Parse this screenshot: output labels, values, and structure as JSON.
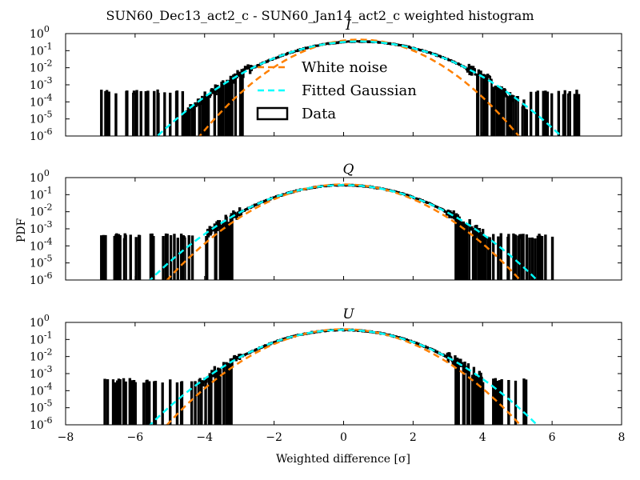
{
  "chart_data": {
    "title": "SUN60_Dec13_act2_c - SUN60_Jan14_act2_c weighted histogram",
    "xlabel": "Weighted difference [σ]",
    "ylabel": "PDF",
    "xlim": [
      -8,
      8
    ],
    "x_ticks": [
      "−8",
      "−6",
      "−4",
      "−2",
      "0",
      "2",
      "4",
      "6",
      "8"
    ],
    "y_ticks": [
      {
        "base": "10",
        "exp": "0"
      },
      {
        "base": "10",
        "exp": "-1"
      },
      {
        "base": "10",
        "exp": "-2"
      },
      {
        "base": "10",
        "exp": "-3"
      },
      {
        "base": "10",
        "exp": "-4"
      },
      {
        "base": "10",
        "exp": "-5"
      },
      {
        "base": "10",
        "exp": "-6"
      }
    ],
    "y_scale": "log",
    "grid": false,
    "legend": {
      "placement": "upper-center (top panel)",
      "entries": [
        {
          "label": "White noise",
          "style": "dashed",
          "color": "#ff8000"
        },
        {
          "label": "Fitted Gaussian",
          "style": "dashed",
          "color": "#00ffff"
        },
        {
          "label": "Data",
          "style": "step",
          "color": "#000000"
        }
      ]
    },
    "panels": [
      {
        "title": "I",
        "type": "line",
        "ylim": [
          1e-06,
          1
        ],
        "white_noise": {
          "mean": 0.45,
          "sigma": 0.9
        },
        "fitted_gaussian": {
          "mean": 0.45,
          "sigma": 1.15
        },
        "data_range": [
          -7.1,
          7.0
        ],
        "data_dense_range": [
          -4.6,
          5.3
        ]
      },
      {
        "title": "Q",
        "type": "line",
        "ylim": [
          1e-06,
          1
        ],
        "white_noise": {
          "mean": 0.0,
          "sigma": 1.0
        },
        "fitted_gaussian": {
          "mean": 0.0,
          "sigma": 1.1
        },
        "data_range": [
          -7.0,
          6.0
        ],
        "data_dense_range": [
          -4.0,
          4.0
        ]
      },
      {
        "title": "U",
        "type": "line",
        "ylim": [
          1e-06,
          1
        ],
        "white_noise": {
          "mean": 0.0,
          "sigma": 1.0
        },
        "fitted_gaussian": {
          "mean": 0.0,
          "sigma": 1.1
        },
        "data_range": [
          -7.0,
          5.5
        ],
        "data_dense_range": [
          -4.3,
          4.0
        ]
      }
    ],
    "colors": {
      "white_noise": "#ff8000",
      "fitted_gaussian": "#00ffff",
      "data": "#000000"
    }
  }
}
